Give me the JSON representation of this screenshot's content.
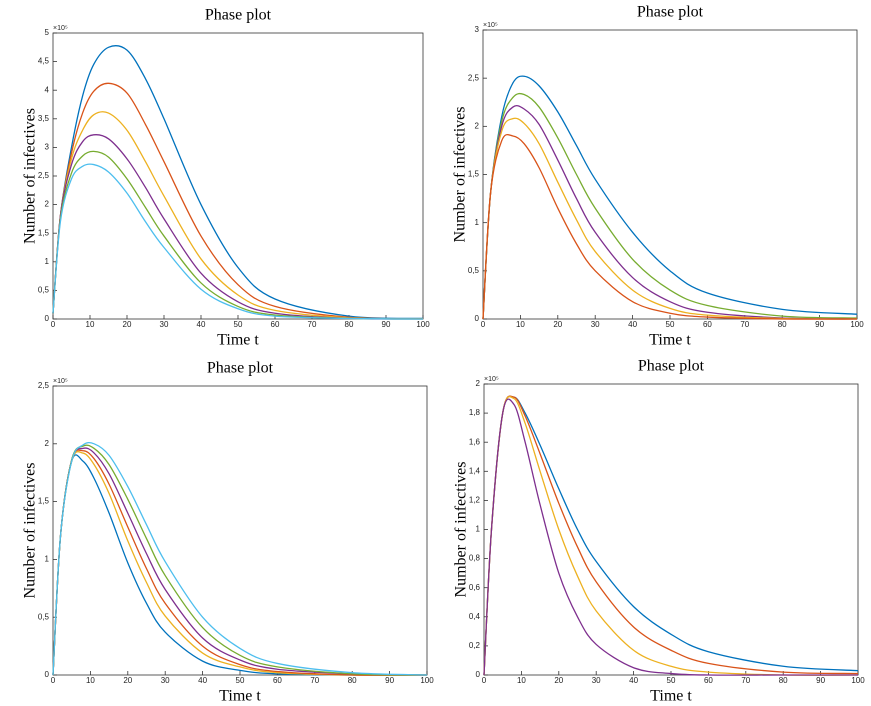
{
  "chart_data": [
    {
      "type": "line",
      "title": "Phase plot",
      "xlabel": "Time t",
      "ylabel": "Number of infectives",
      "multiplier": "×10⁵",
      "x": [
        0,
        2,
        5,
        8,
        11,
        15,
        20,
        25,
        30,
        40,
        50,
        60,
        80,
        100
      ],
      "xlim": [
        0,
        100
      ],
      "xticks": [
        0,
        10,
        20,
        30,
        40,
        50,
        60,
        70,
        80,
        90,
        100
      ],
      "ylim": [
        0,
        5
      ],
      "yticks": [
        0,
        {
          "value": 0.5,
          "label": "0,5"
        },
        1,
        {
          "value": 1.5,
          "label": "1,5"
        },
        2,
        {
          "value": 2.5,
          "label": "2,5"
        },
        3,
        {
          "value": 3.5,
          "label": "3,5"
        },
        4,
        {
          "value": 4.5,
          "label": "4,5"
        },
        5
      ],
      "series": [
        {
          "color": "#0072bd",
          "values": [
            0.1,
            1.8,
            3.0,
            3.9,
            4.45,
            4.75,
            4.7,
            4.2,
            3.5,
            2.0,
            0.9,
            0.35,
            0.05,
            0.01
          ]
        },
        {
          "color": "#d95319",
          "values": [
            0.1,
            1.8,
            2.9,
            3.6,
            3.98,
            4.12,
            3.95,
            3.4,
            2.75,
            1.45,
            0.6,
            0.22,
            0.03,
            0.005
          ]
        },
        {
          "color": "#edb120",
          "values": [
            0.1,
            1.8,
            2.8,
            3.3,
            3.57,
            3.6,
            3.3,
            2.75,
            2.15,
            1.05,
            0.42,
            0.15,
            0.02,
            0.003
          ]
        },
        {
          "color": "#7e2f8e",
          "values": [
            0.1,
            1.8,
            2.7,
            3.1,
            3.22,
            3.15,
            2.8,
            2.3,
            1.75,
            0.8,
            0.3,
            0.1,
            0.01,
            0
          ]
        },
        {
          "color": "#77ac30",
          "values": [
            0.1,
            1.75,
            2.55,
            2.85,
            2.93,
            2.83,
            2.45,
            1.95,
            1.45,
            0.63,
            0.22,
            0.07,
            0.01,
            0
          ]
        },
        {
          "color": "#4dbeee",
          "values": [
            0.1,
            1.7,
            2.45,
            2.67,
            2.7,
            2.57,
            2.2,
            1.7,
            1.25,
            0.52,
            0.18,
            0.05,
            0.01,
            0
          ]
        }
      ]
    },
    {
      "type": "line",
      "title": "Phase plot",
      "xlabel": "Time t",
      "ylabel": "Number of infectives",
      "multiplier": "×10⁵",
      "x": [
        0,
        2,
        5,
        8,
        11,
        15,
        20,
        25,
        30,
        40,
        50,
        60,
        80,
        100
      ],
      "xlim": [
        0,
        100
      ],
      "xticks": [
        0,
        10,
        20,
        30,
        40,
        50,
        60,
        70,
        80,
        90,
        100
      ],
      "ylim": [
        0,
        3
      ],
      "yticks": [
        0,
        {
          "value": 0.5,
          "label": "0,5"
        },
        1,
        {
          "value": 1.5,
          "label": "1,5"
        },
        2,
        {
          "value": 2.5,
          "label": "2,5"
        },
        3
      ],
      "series": [
        {
          "color": "#0072bd",
          "values": [
            0,
            1.3,
            2.1,
            2.45,
            2.52,
            2.42,
            2.15,
            1.8,
            1.45,
            0.9,
            0.5,
            0.27,
            0.1,
            0.05
          ]
        },
        {
          "color": "#77ac30",
          "values": [
            0,
            1.3,
            2.05,
            2.3,
            2.33,
            2.2,
            1.88,
            1.5,
            1.15,
            0.62,
            0.3,
            0.14,
            0.03,
            0.01
          ]
        },
        {
          "color": "#7e2f8e",
          "values": [
            0,
            1.3,
            2.0,
            2.2,
            2.18,
            2.02,
            1.65,
            1.25,
            0.9,
            0.43,
            0.18,
            0.07,
            0.01,
            0
          ]
        },
        {
          "color": "#edb120",
          "values": [
            0,
            1.3,
            1.95,
            2.08,
            2.03,
            1.82,
            1.42,
            1.03,
            0.7,
            0.3,
            0.11,
            0.04,
            0.005,
            0
          ]
        },
        {
          "color": "#d95319",
          "values": [
            0,
            1.3,
            1.85,
            1.9,
            1.82,
            1.57,
            1.15,
            0.78,
            0.5,
            0.18,
            0.06,
            0.02,
            0,
            0
          ]
        }
      ]
    },
    {
      "type": "line",
      "title": "Phase plot",
      "xlabel": "Time t",
      "ylabel": "Number of infectives",
      "multiplier": "×10⁵",
      "x": [
        0,
        2,
        5,
        8,
        11,
        15,
        20,
        25,
        30,
        40,
        50,
        60,
        80,
        100
      ],
      "xlim": [
        0,
        100
      ],
      "xticks": [
        0,
        10,
        20,
        30,
        40,
        50,
        60,
        70,
        80,
        90,
        100
      ],
      "ylim": [
        0,
        2.5
      ],
      "yticks": [
        0,
        {
          "value": 0.5,
          "label": "0,5"
        },
        1,
        {
          "value": 1.5,
          "label": "1,5"
        },
        2,
        {
          "value": 2.5,
          "label": "2,5"
        }
      ],
      "series": [
        {
          "color": "#0072bd",
          "values": [
            0,
            1.2,
            1.85,
            1.85,
            1.7,
            1.4,
            0.97,
            0.62,
            0.37,
            0.12,
            0.04,
            0.01,
            0,
            0
          ]
        },
        {
          "color": "#edb120",
          "values": [
            0,
            1.2,
            1.85,
            1.92,
            1.82,
            1.57,
            1.16,
            0.8,
            0.51,
            0.19,
            0.07,
            0.02,
            0,
            0
          ]
        },
        {
          "color": "#d95319",
          "values": [
            0,
            1.2,
            1.86,
            1.94,
            1.87,
            1.65,
            1.28,
            0.92,
            0.62,
            0.25,
            0.09,
            0.03,
            0,
            0
          ]
        },
        {
          "color": "#7e2f8e",
          "values": [
            0,
            1.2,
            1.86,
            1.96,
            1.92,
            1.74,
            1.4,
            1.05,
            0.74,
            0.32,
            0.13,
            0.05,
            0.01,
            0
          ]
        },
        {
          "color": "#77ac30",
          "values": [
            0,
            1.2,
            1.86,
            1.98,
            1.96,
            1.82,
            1.52,
            1.18,
            0.86,
            0.41,
            0.17,
            0.07,
            0.01,
            0
          ]
        },
        {
          "color": "#4dbeee",
          "values": [
            0,
            1.2,
            1.85,
            1.99,
            2.0,
            1.9,
            1.63,
            1.3,
            0.98,
            0.5,
            0.23,
            0.1,
            0.02,
            0
          ]
        }
      ]
    },
    {
      "type": "line",
      "title": "Phase plot",
      "xlabel": "Time t",
      "ylabel": "Number of infectives",
      "multiplier": "×10⁵",
      "x": [
        0,
        2,
        5,
        8,
        11,
        15,
        20,
        25,
        30,
        40,
        50,
        60,
        80,
        100
      ],
      "xlim": [
        0,
        100
      ],
      "xticks": [
        0,
        10,
        20,
        30,
        40,
        50,
        60,
        70,
        80,
        90,
        100
      ],
      "ylim": [
        0,
        2
      ],
      "yticks": [
        0,
        {
          "value": 0.2,
          "label": "0,2"
        },
        {
          "value": 0.4,
          "label": "0,4"
        },
        {
          "value": 0.6,
          "label": "0,6"
        },
        {
          "value": 0.8,
          "label": "0,8"
        },
        1,
        {
          "value": 1.2,
          "label": "1,2"
        },
        {
          "value": 1.4,
          "label": "1,4"
        },
        {
          "value": 1.6,
          "label": "1,6"
        },
        {
          "value": 1.8,
          "label": "1,8"
        },
        2
      ],
      "series": [
        {
          "color": "#0072bd",
          "values": [
            0,
            1.0,
            1.8,
            1.91,
            1.8,
            1.58,
            1.28,
            1.0,
            0.78,
            0.47,
            0.28,
            0.16,
            0.06,
            0.03
          ]
        },
        {
          "color": "#d95319",
          "values": [
            0,
            1.0,
            1.8,
            1.91,
            1.78,
            1.52,
            1.18,
            0.88,
            0.64,
            0.33,
            0.17,
            0.08,
            0.02,
            0.01
          ]
        },
        {
          "color": "#edb120",
          "values": [
            0,
            1.0,
            1.8,
            1.9,
            1.73,
            1.4,
            1.0,
            0.68,
            0.44,
            0.17,
            0.06,
            0.02,
            0,
            0
          ]
        },
        {
          "color": "#7e2f8e",
          "values": [
            0,
            1.0,
            1.8,
            1.86,
            1.6,
            1.17,
            0.7,
            0.4,
            0.21,
            0.05,
            0.01,
            0,
            0,
            0
          ]
        }
      ]
    }
  ]
}
